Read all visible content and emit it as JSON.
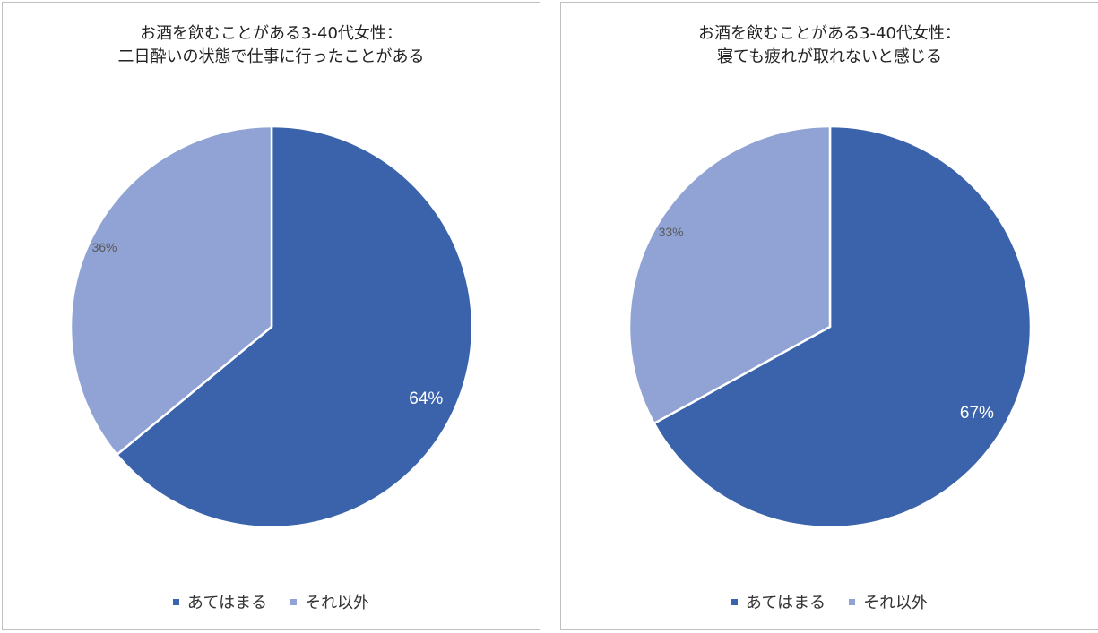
{
  "chart_data": [
    {
      "type": "pie",
      "title": [
        "お酒を飲むことがある3-40代女性：",
        "二日酔いの状態で仕事に行ったことがある"
      ],
      "categories": [
        "あてはまる",
        "それ以外"
      ],
      "values": [
        64,
        36
      ],
      "labels": [
        "64%",
        "36%"
      ],
      "colors": [
        "#3b63ab",
        "#90a3d4"
      ],
      "label_colors": [
        "#ffffff",
        "#595959"
      ],
      "legend_position": "bottom"
    },
    {
      "type": "pie",
      "title": [
        "お酒を飲むことがある3-40代女性：",
        "寝ても疲れが取れないと感じる"
      ],
      "categories": [
        "あてはまる",
        "それ以外"
      ],
      "values": [
        67,
        33
      ],
      "labels": [
        "67%",
        "33%"
      ],
      "colors": [
        "#3b63ab",
        "#90a3d4"
      ],
      "label_colors": [
        "#ffffff",
        "#595959"
      ],
      "legend_position": "bottom"
    }
  ]
}
